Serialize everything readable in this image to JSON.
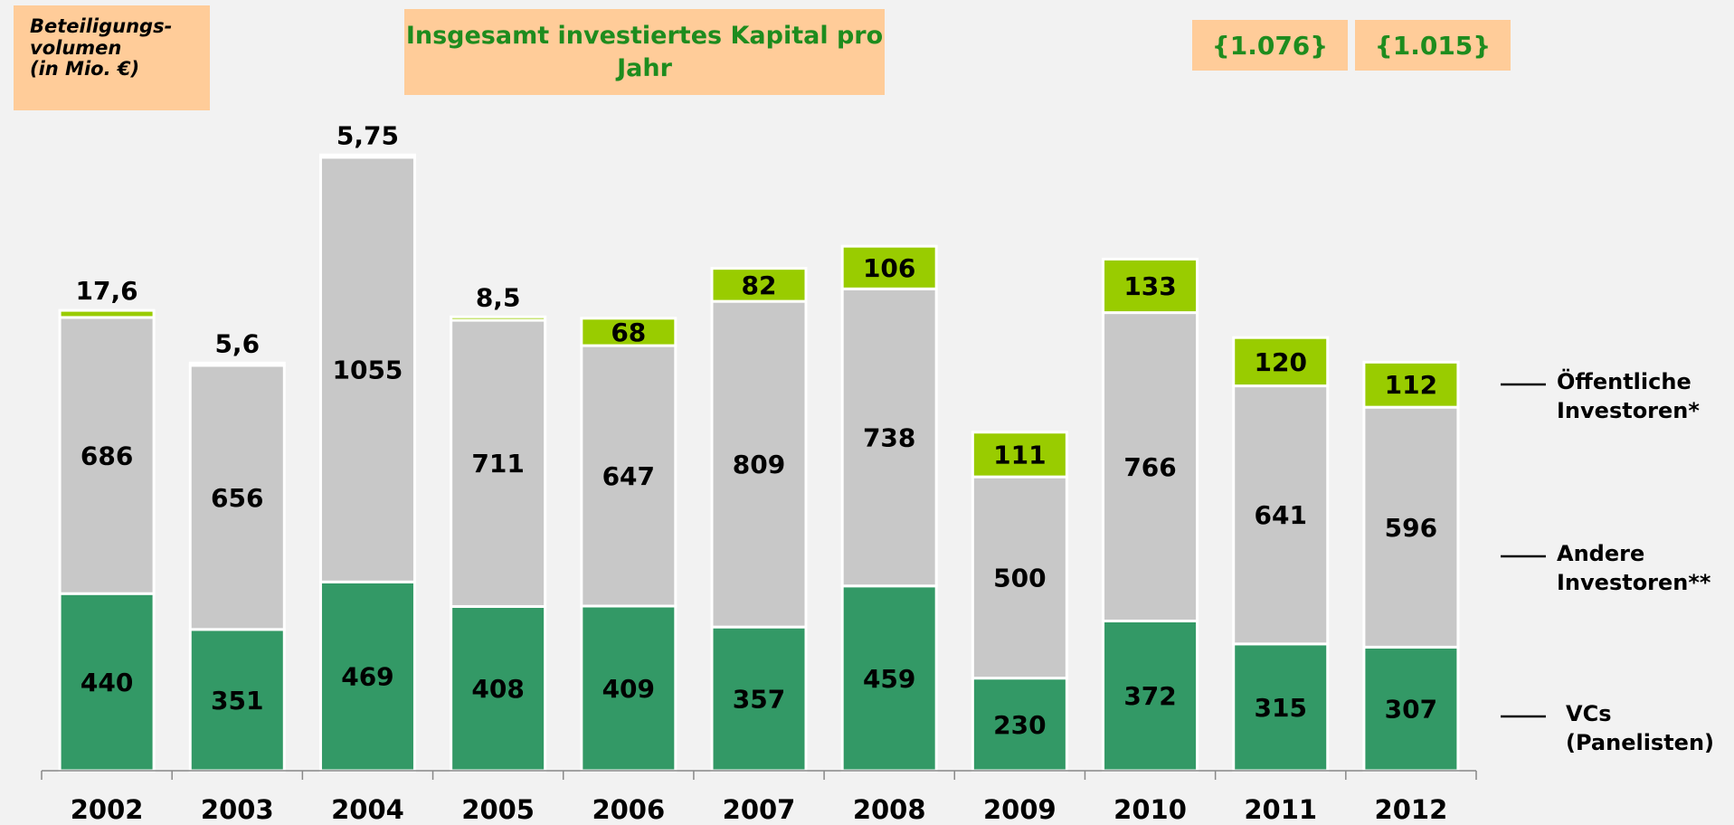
{
  "chart_data": {
    "type": "stacked_bar",
    "title": "Insgesamt investiertes Kapital pro Jahr",
    "ylabel": "Beteiligungs-\nvolumen\n(in Mio. €)",
    "annotations": [
      "{1.076}",
      "{1.015}"
    ],
    "categories": [
      "2002",
      "2003",
      "2004",
      "2005",
      "2006",
      "2007",
      "2008",
      "2009",
      "2010",
      "2011",
      "2012"
    ],
    "series": [
      {
        "name": "VCs (Panelisten)",
        "color": "#339966",
        "values": [
          440,
          351,
          469,
          408,
          409,
          357,
          459,
          230,
          372,
          315,
          307
        ]
      },
      {
        "name": "Andere Investoren**",
        "color": "#c8c8c8",
        "values": [
          686,
          656,
          1055,
          711,
          647,
          809,
          738,
          500,
          766,
          641,
          596
        ]
      },
      {
        "name": "Öffentliche Investoren*",
        "color": "#99cc00",
        "values": [
          17.6,
          5.6,
          5.75,
          8.5,
          68,
          82,
          106,
          111,
          133,
          120,
          112
        ],
        "value_labels": [
          "17,6",
          "5,6",
          "5,75",
          "8,5",
          "68",
          "82",
          "106",
          "111",
          "133",
          "120",
          "112"
        ]
      }
    ],
    "ylim": [
      0,
      1600
    ]
  }
}
